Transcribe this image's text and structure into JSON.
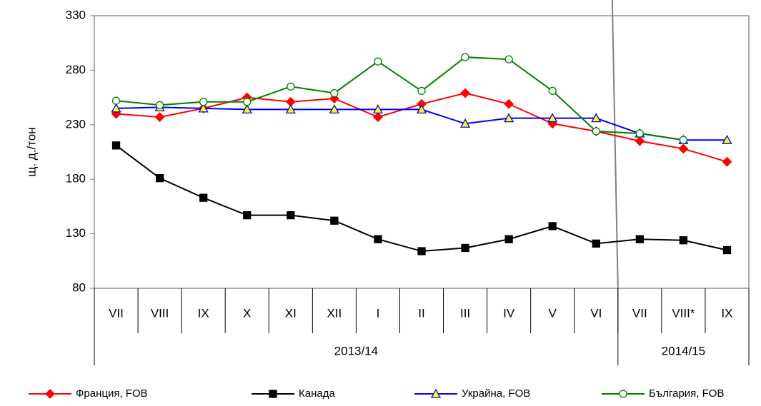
{
  "chart_data": {
    "type": "line",
    "ylabel": "щ. д./тон",
    "categories": [
      "VII",
      "VIII",
      "IX",
      "X",
      "XI",
      "XII",
      "I",
      "II",
      "III",
      "IV",
      "V",
      "VI",
      "VII",
      "VIII*",
      "IX"
    ],
    "groups": [
      {
        "label": "2013/14",
        "span": 12
      },
      {
        "label": "2014/15",
        "span": 3
      }
    ],
    "ylim": [
      80,
      330
    ],
    "yticks": [
      80,
      130,
      180,
      230,
      280,
      330
    ],
    "series": [
      {
        "name": "Франция, FOB",
        "color": "#ff0000",
        "marker": "diamond",
        "marker_fill": "#ff0000",
        "values": [
          240,
          237,
          245,
          255,
          251,
          254,
          237,
          249,
          259,
          249,
          231,
          224,
          215,
          208,
          196
        ]
      },
      {
        "name": "Канада",
        "color": "#000000",
        "marker": "square",
        "marker_fill": "#000000",
        "values": [
          211,
          181,
          163,
          147,
          147,
          142,
          125,
          114,
          117,
          125,
          137,
          121,
          125,
          124,
          115
        ]
      },
      {
        "name": "Украйна, FOB",
        "color": "#0000ff",
        "marker": "triangle",
        "marker_fill": "#ffff00",
        "values": [
          245,
          246,
          245,
          244,
          244,
          244,
          244,
          244,
          231,
          236,
          236,
          236,
          222,
          216,
          216
        ]
      },
      {
        "name": "България, FOB",
        "color": "#008000",
        "marker": "circle",
        "marker_fill": "#ffffff",
        "values": [
          252,
          248,
          251,
          251,
          265,
          259,
          288,
          261,
          292,
          290,
          261,
          224,
          222,
          216,
          null
        ]
      }
    ]
  }
}
